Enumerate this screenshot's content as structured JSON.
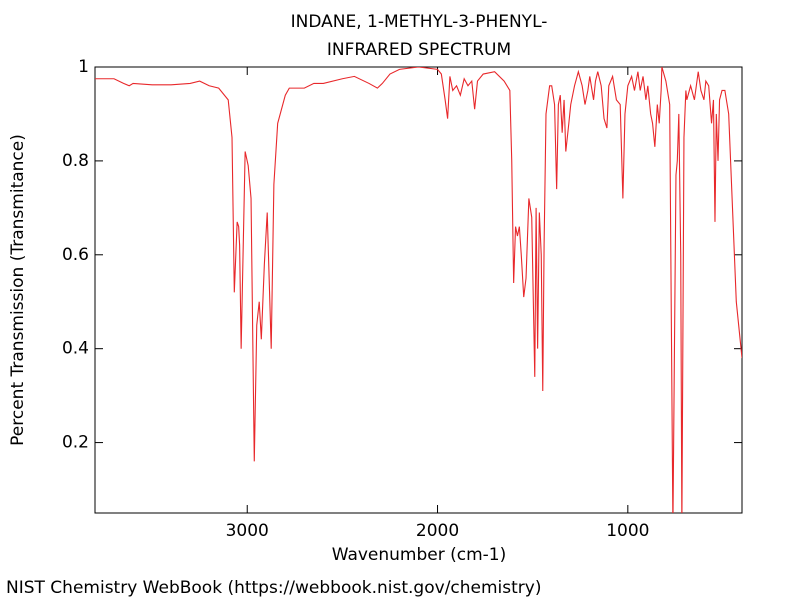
{
  "chart_data": {
    "type": "line",
    "title": "INDANE, 1-METHYL-3-PHENYL-",
    "subtitle": "INFRARED SPECTRUM",
    "x_label": "Wavenumber (cm-1)",
    "y_label": "Percent Transmission (Transmitance)",
    "footer": "NIST Chemistry WebBook (https://webbook.nist.gov/chemistry)",
    "xlim": [
      3800,
      400
    ],
    "ylim": [
      0.05,
      1
    ],
    "xticks": [
      3000,
      2000,
      1000
    ],
    "yticks": [
      0.2,
      0.4,
      0.6,
      0.8,
      1
    ],
    "series": [
      {
        "color": "#e8282b",
        "x": [
          3800,
          3700,
          3650,
          3620,
          3600,
          3500,
          3400,
          3300,
          3250,
          3200,
          3150,
          3100,
          3080,
          3068,
          3053,
          3045,
          3040,
          3032,
          3011,
          2995,
          2980,
          2963,
          2950,
          2937,
          2926,
          2910,
          2895,
          2874,
          2860,
          2840,
          2800,
          2779,
          2700,
          2650,
          2600,
          2500,
          2437,
          2360,
          2316,
          2290,
          2250,
          2200,
          2100,
          2000,
          1980,
          1960,
          1947,
          1935,
          1920,
          1900,
          1880,
          1860,
          1840,
          1820,
          1805,
          1790,
          1760,
          1700,
          1650,
          1620,
          1610,
          1600,
          1590,
          1580,
          1570,
          1560,
          1547,
          1535,
          1520,
          1505,
          1489,
          1482,
          1474,
          1465,
          1455,
          1447,
          1440,
          1430,
          1411,
          1400,
          1385,
          1374,
          1365,
          1355,
          1345,
          1335,
          1326,
          1310,
          1300,
          1280,
          1260,
          1240,
          1225,
          1210,
          1200,
          1180,
          1170,
          1158,
          1140,
          1125,
          1110,
          1100,
          1080,
          1060,
          1040,
          1026,
          1015,
          1000,
          980,
          965,
          947,
          935,
          920,
          905,
          895,
          880,
          870,
          858,
          845,
          835,
          825,
          821,
          800,
          780,
          763,
          755,
          747,
          740,
          732,
          722,
          716,
          705,
          695,
          690,
          670,
          650,
          630,
          616,
          600,
          590,
          575,
          560,
          550,
          542,
          535,
          526,
          518,
          505,
          490,
          470,
          450,
          430,
          400
        ],
        "values": [
          0.975,
          0.975,
          0.965,
          0.96,
          0.965,
          0.962,
          0.962,
          0.965,
          0.97,
          0.96,
          0.955,
          0.93,
          0.85,
          0.52,
          0.67,
          0.66,
          0.62,
          0.4,
          0.82,
          0.79,
          0.72,
          0.16,
          0.45,
          0.5,
          0.42,
          0.58,
          0.69,
          0.4,
          0.75,
          0.88,
          0.94,
          0.955,
          0.955,
          0.965,
          0.965,
          0.975,
          0.98,
          0.965,
          0.955,
          0.965,
          0.985,
          0.995,
          1.0,
          0.995,
          0.985,
          0.93,
          0.89,
          0.98,
          0.95,
          0.96,
          0.94,
          0.975,
          0.96,
          0.97,
          0.91,
          0.97,
          0.985,
          0.99,
          0.97,
          0.95,
          0.8,
          0.54,
          0.66,
          0.64,
          0.66,
          0.6,
          0.51,
          0.55,
          0.72,
          0.68,
          0.34,
          0.7,
          0.4,
          0.69,
          0.6,
          0.31,
          0.62,
          0.9,
          0.96,
          0.96,
          0.92,
          0.74,
          0.92,
          0.94,
          0.86,
          0.93,
          0.82,
          0.88,
          0.92,
          0.96,
          0.99,
          0.96,
          0.92,
          0.95,
          0.98,
          0.93,
          0.97,
          0.99,
          0.96,
          0.89,
          0.87,
          0.96,
          0.98,
          0.93,
          0.92,
          0.72,
          0.9,
          0.96,
          0.98,
          0.95,
          0.99,
          0.95,
          0.98,
          0.93,
          0.96,
          0.9,
          0.88,
          0.83,
          0.92,
          0.88,
          0.95,
          1.0,
          0.97,
          0.92,
          0.02,
          0.4,
          0.77,
          0.8,
          0.9,
          0.6,
          0.02,
          0.85,
          0.95,
          0.93,
          0.96,
          0.93,
          0.99,
          0.95,
          0.93,
          0.97,
          0.96,
          0.88,
          0.93,
          0.67,
          0.9,
          0.8,
          0.93,
          0.95,
          0.95,
          0.9,
          0.7,
          0.5,
          0.38
        ]
      }
    ]
  }
}
